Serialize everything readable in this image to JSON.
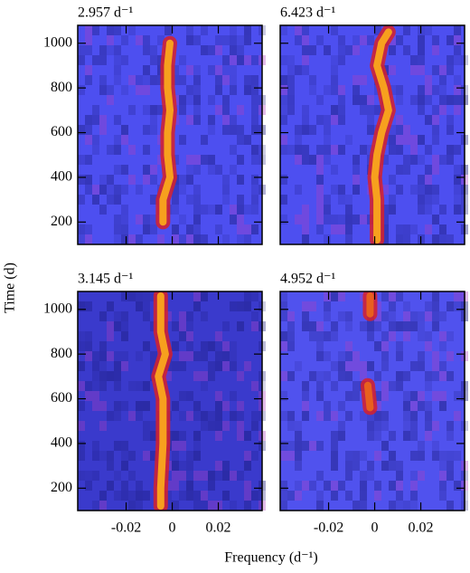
{
  "xlabel": "Frequency (d⁻¹)",
  "ylabel": "Time (d)",
  "chart_data": [
    {
      "type": "line",
      "title": "2.957 d⁻¹",
      "background": "#4d4ff0",
      "xlim": [
        -0.041,
        0.039
      ],
      "ylim": [
        100,
        1080
      ],
      "xticks": [
        -0.02,
        0,
        0.02
      ],
      "yticks": [
        200,
        400,
        600,
        800,
        1000
      ],
      "x": [
        -0.001,
        -0.002,
        -0.002,
        -0.001,
        -0.002,
        -0.002,
        -0.001,
        -0.004,
        -0.004
      ],
      "series": [
        {
          "color": "#f7a01e",
          "values": [
            1000,
            900,
            800,
            700,
            600,
            500,
            400,
            300,
            200
          ]
        }
      ]
    },
    {
      "type": "line",
      "title": "6.423 d⁻¹",
      "background": "#4d4ff0",
      "xlim": [
        -0.041,
        0.039
      ],
      "ylim": [
        100,
        1080
      ],
      "xticks": [
        -0.02,
        0,
        0.02
      ],
      "yticks": [
        200,
        400,
        600,
        800,
        1000
      ],
      "x": [
        0.006,
        0.003,
        0.001,
        0.004,
        0.006,
        0.003,
        0.001,
        0.0,
        0.001,
        0.001,
        0.001
      ],
      "series": [
        {
          "color": "#f7a01e",
          "values": [
            1050,
            1000,
            900,
            800,
            700,
            600,
            500,
            400,
            300,
            200,
            120
          ]
        }
      ]
    },
    {
      "type": "line",
      "title": "3.145 d⁻¹",
      "background": "#3a3acc",
      "xlim": [
        -0.041,
        0.039
      ],
      "ylim": [
        100,
        1080
      ],
      "xticks": [
        -0.02,
        0,
        0.02
      ],
      "yticks": [
        200,
        400,
        600,
        800,
        1000
      ],
      "x": [
        -0.005,
        -0.005,
        -0.003,
        -0.006,
        -0.004,
        -0.004,
        -0.005,
        -0.005
      ],
      "series": [
        {
          "color": "#f7a01e",
          "values": [
            1060,
            900,
            800,
            700,
            600,
            400,
            200,
            120
          ]
        }
      ]
    },
    {
      "type": "line",
      "title": "4.952 d⁻¹",
      "background": "#5052ee",
      "xlim": [
        -0.041,
        0.039
      ],
      "ylim": [
        100,
        1080
      ],
      "xticks": [
        -0.02,
        0,
        0.02
      ],
      "yticks": [
        200,
        400,
        600,
        800,
        1000
      ],
      "x": [
        -0.002,
        -0.002,
        null,
        -0.003,
        -0.002
      ],
      "series": [
        {
          "color": "#e8601e",
          "values": [
            1060,
            980,
            null,
            660,
            560
          ]
        }
      ]
    }
  ]
}
